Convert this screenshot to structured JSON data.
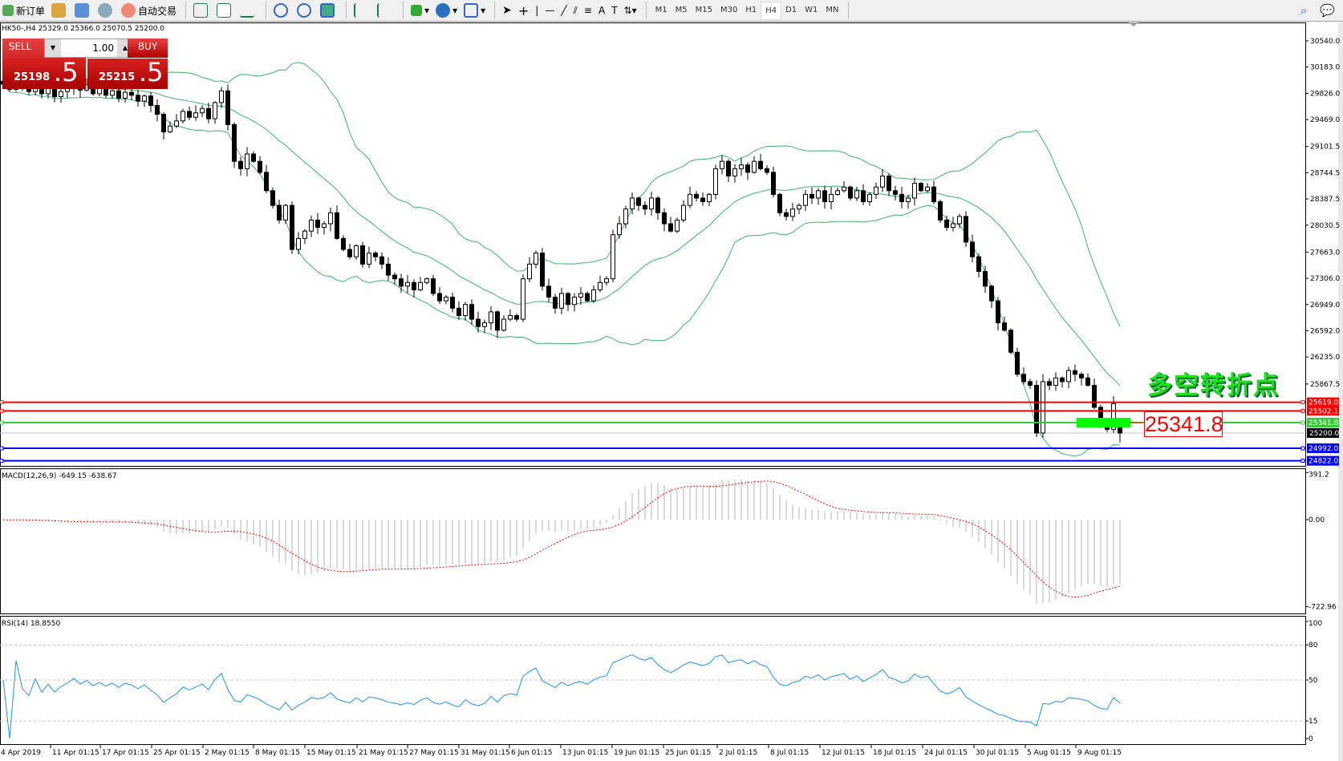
{
  "toolbar": {
    "new_order": "新订单",
    "auto_trading": "自动交易",
    "timeframes": [
      "M1",
      "M5",
      "M15",
      "M30",
      "H1",
      "H4",
      "D1",
      "W1",
      "MN"
    ],
    "selected_timeframe": "H4"
  },
  "chart": {
    "header": "HK50-,H4  25329.0 25366.0 25070.5 25200.0",
    "symbol": "HK50-",
    "timeframe": "H4",
    "ohlc_last": {
      "open": 25329.0,
      "high": 25366.0,
      "low": 25070.5,
      "close": 25200.0
    }
  },
  "trade_panel": {
    "sell_label": "SELL",
    "buy_label": "BUY",
    "lots": "1.00",
    "bid_main": "25198",
    "bid_frac": ".5",
    "ask_main": "25215",
    "ask_frac": ".5",
    "color": "#c00000"
  },
  "annotation": {
    "text": "多空转折点",
    "value_label": "25341.8",
    "text_color": "#1ee01e",
    "value_color": "#ff0000"
  },
  "price_axis": [
    "30540.0",
    "30183.0",
    "29826.0",
    "29469.0",
    "29101.5",
    "28744.5",
    "28387.5",
    "28030.5",
    "27663.0",
    "27306.0",
    "26949.0",
    "26592.0",
    "26235.0",
    "25867.5"
  ],
  "hlines": [
    {
      "value": "25619.0",
      "color": "#ff0000"
    },
    {
      "value": "25502.1",
      "color": "#ff0000"
    },
    {
      "value": "25341.8",
      "color": "#33cc33"
    },
    {
      "value": "24992.0",
      "color": "#0000ff"
    },
    {
      "value": "24822.0",
      "color": "#0000ff"
    }
  ],
  "bid_line": {
    "value": "25200.0",
    "color": "#000000"
  },
  "time_axis": [
    "4 Apr 2019",
    "11 Apr 01:15",
    "17 Apr 01:15",
    "25 Apr 01:15",
    "2 May 01:15",
    "8 May 01:15",
    "15 May 01:15",
    "21 May 01:15",
    "27 May 01:15",
    "31 May 01:15",
    "6 Jun 01:15",
    "13 Jun 01:15",
    "19 Jun 01:15",
    "25 Jun 01:15",
    "2 Jul 01:15",
    "8 Jul 01:15",
    "12 Jul 01:15",
    "18 Jul 01:15",
    "24 Jul 01:15",
    "30 Jul 01:15",
    "5 Aug 01:15",
    "9 Aug 01:15"
  ],
  "indicators": {
    "bollinger_color": "#3cb371",
    "macd": {
      "label": "MACD(12,26,9) -649.15 -638.67",
      "axis": [
        "391.2",
        "0.00",
        "-722.96"
      ],
      "signal_color": "#ff0000",
      "hist_color": "#c0c0c0"
    },
    "rsi": {
      "label": "RSI(14) 18.8550",
      "axis": [
        "100",
        "80",
        "50",
        "15",
        "0"
      ],
      "color": "#1e90ff"
    }
  },
  "chart_data": {
    "type": "candlestick",
    "closes": [
      29950,
      29880,
      30020,
      29900,
      29850,
      29960,
      29820,
      29900,
      29780,
      29850,
      29900,
      29980,
      29870,
      29940,
      29820,
      29890,
      29800,
      29860,
      29760,
      29840,
      29800,
      29720,
      29790,
      29660,
      29540,
      29300,
      29380,
      29450,
      29580,
      29500,
      29560,
      29620,
      29480,
      29700,
      29860,
      29400,
      28900,
      28800,
      29000,
      28900,
      28750,
      28500,
      28300,
      28100,
      28300,
      27700,
      27850,
      27950,
      28100,
      28000,
      28050,
      28200,
      27850,
      27700,
      27600,
      27750,
      27500,
      27650,
      27600,
      27500,
      27350,
      27300,
      27200,
      27250,
      27150,
      27250,
      27300,
      27100,
      27000,
      27050,
      26900,
      26800,
      26950,
      26750,
      26650,
      26700,
      26850,
      26600,
      26750,
      26800,
      26750,
      27300,
      27500,
      27650,
      27200,
      27050,
      26900,
      27100,
      26950,
      27050,
      27100,
      27000,
      27150,
      27250,
      27300,
      27900,
      28050,
      28250,
      28400,
      28300,
      28250,
      28400,
      28200,
      28050,
      27950,
      28100,
      28300,
      28450,
      28400,
      28350,
      28450,
      28800,
      28900,
      28700,
      28800,
      28850,
      28750,
      28900,
      28800,
      28750,
      28450,
      28200,
      28150,
      28250,
      28300,
      28450,
      28400,
      28500,
      28350,
      28450,
      28500,
      28550,
      28400,
      28500,
      28350,
      28450,
      28550,
      28700,
      28500,
      28450,
      28350,
      28400,
      28600,
      28500,
      28550,
      28350,
      28100,
      28000,
      28050,
      28150,
      27800,
      27600,
      27400,
      27200,
      27000,
      26700,
      26600,
      26300,
      26000,
      25900,
      25850,
      25200,
      25900,
      25850,
      25950,
      25900,
      26050,
      26000,
      25950,
      25850,
      25550,
      25300,
      25250,
      25600,
      25200
    ]
  }
}
